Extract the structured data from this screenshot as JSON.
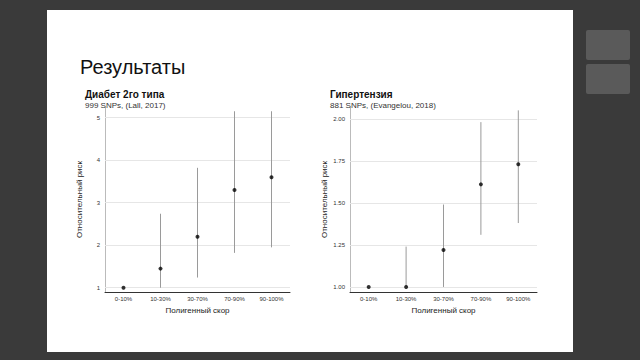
{
  "page_title": "Результаты",
  "chart_data": [
    {
      "type": "scatter",
      "title": "Диабет 2го типа",
      "subtitle": "999 SNPs, (Lall, 2017)",
      "x_label": "Полигенный скор",
      "y_label": "Относительный риск",
      "categories": [
        "0-10%",
        "10-30%",
        "30-70%",
        "70-90%",
        "90-100%"
      ],
      "values": [
        1.0,
        1.45,
        2.2,
        3.3,
        3.6
      ],
      "ci_low": [
        null,
        1.0,
        1.24,
        1.82,
        1.95
      ],
      "ci_high": [
        null,
        2.74,
        3.82,
        5.15,
        5.15
      ],
      "color": "#000000",
      "marker": "circle",
      "ylim": [
        0.9,
        5.25
      ],
      "yticks": [
        1,
        2,
        3,
        4,
        5
      ],
      "grid": true
    },
    {
      "type": "scatter",
      "title": "Гипертензия",
      "subtitle": "881 SNPs, (Evangelou, 2018)",
      "x_label": "Полигенный скор",
      "y_label": "Относительный риск",
      "categories": [
        "0-10%",
        "10-30%",
        "30-70%",
        "70-90%",
        "90-100%"
      ],
      "values": [
        1.0,
        1.0,
        1.22,
        1.61,
        1.73
      ],
      "ci_low": [
        null,
        1.0,
        1.0,
        1.31,
        1.38
      ],
      "ci_high": [
        null,
        1.24,
        1.49,
        1.98,
        2.05
      ],
      "color": "#000000",
      "marker": "circle",
      "ylim": [
        0.97,
        2.07
      ],
      "yticks": [
        {
          "value": 1,
          "label": "1.00"
        },
        1.25,
        {
          "value": 1.5,
          "label": "1.50"
        },
        {
          "value": 1.75,
          "label": "1.75"
        },
        {
          "value": 2,
          "label": "2.00"
        }
      ],
      "grid": true
    }
  ]
}
